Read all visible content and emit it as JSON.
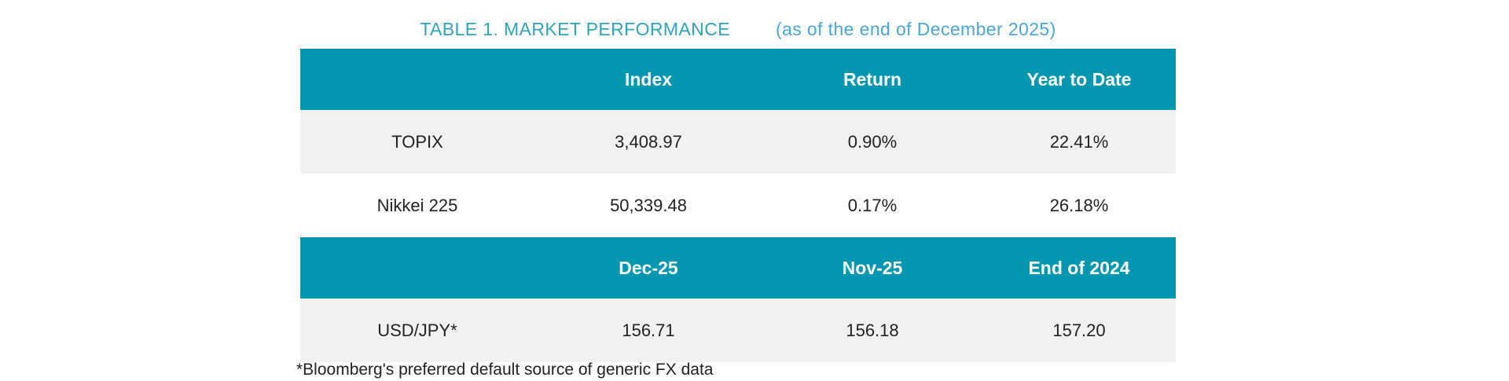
{
  "title": {
    "main": "TABLE 1. MARKET PERFORMANCE",
    "date_note": "(as of the end of December 2025)"
  },
  "colors": {
    "header_bg": "#0497AF",
    "alt_row_bg": "#F1F1F2",
    "title_teal": "#2EA3BE",
    "title_blue": "#4AA6D8",
    "header_text": "#FFFFFF",
    "body_text": "#242122"
  },
  "index_table": {
    "headers": [
      "",
      "Index",
      "Return",
      "Year to Date"
    ],
    "rows": [
      {
        "label": "TOPIX",
        "index": "3,408.97",
        "return": "0.90%",
        "ytd": "22.41%"
      },
      {
        "label": "Nikkei 225",
        "index": "50,339.48",
        "return": "0.17%",
        "ytd": "26.18%"
      }
    ]
  },
  "fx_table": {
    "headers": [
      "",
      "Dec-25",
      "Nov-25",
      "End of 2024"
    ],
    "rows": [
      {
        "label": "USD/JPY*",
        "dec25": "156.71",
        "nov25": "156.18",
        "end2024": "157.20"
      }
    ]
  },
  "footnote": "*Bloomberg's preferred default source of generic FX data"
}
